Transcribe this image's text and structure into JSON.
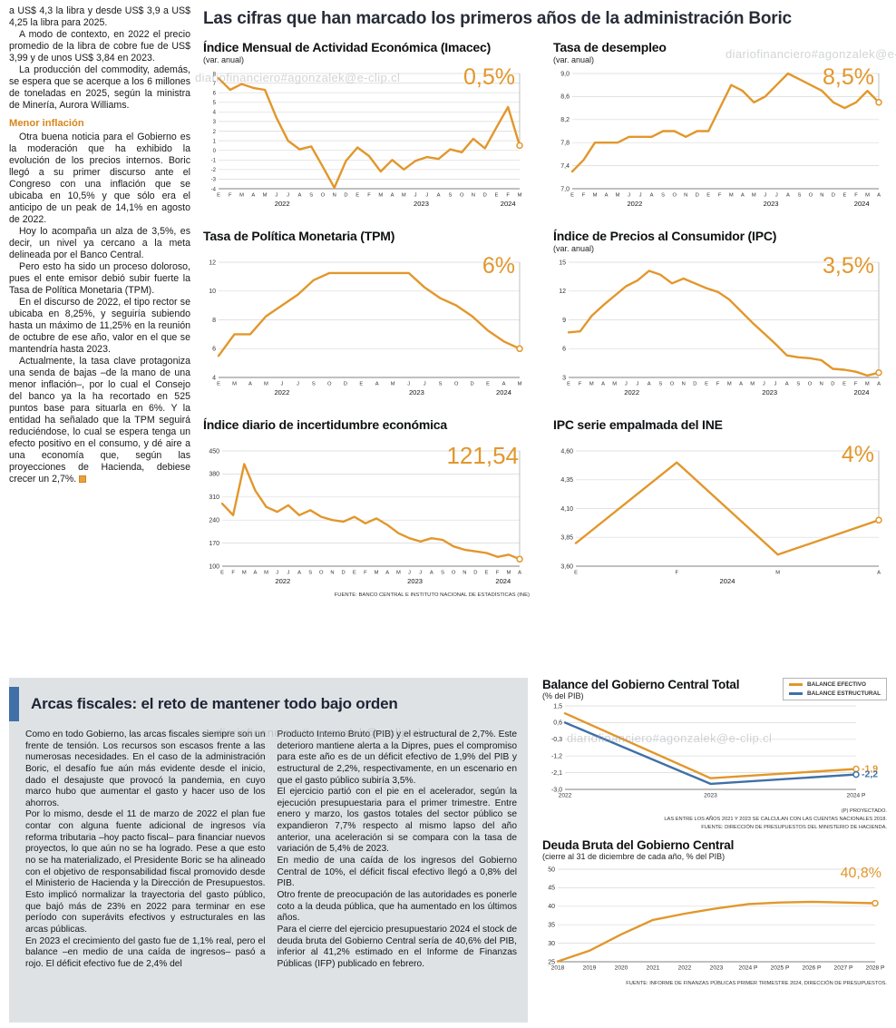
{
  "watermark": "diariofinanciero#agonzalek@e-clip.cl",
  "main_title": "Las cifras que han marcado los primeros años de la administración Boric",
  "colors": {
    "orange": "#e2972b",
    "blue": "#3f70a8",
    "gray_box": "#dfe2e5"
  },
  "left_column": {
    "paragraphs": [
      "a US$ 4,3 la libra y desde US$ 3,9 a US$ 4,25 la libra para 2025.",
      "A modo de contexto, en 2022 el precio promedio de la libra de cobre fue de US$ 3,99 y de unos US$ 3,84 en 2023.",
      "La producción del commodity, además, se espera que se acerque a los 6 millones de toneladas en 2025, según la ministra de Minería, Aurora Williams."
    ],
    "section_heading": "Menor inflación",
    "paragraphs2": [
      "Otra buena noticia para el Gobierno es la moderación que ha exhibido la evolución de los precios internos. Boric llegó a su primer discurso ante el Congreso con una inflación que se ubicaba en 10,5% y que sólo era el anticipo de un peak de 14,1% en agosto de 2022.",
      "Hoy lo acompaña un alza de 3,5%, es decir, un nivel ya cercano a la meta delineada por el Banco Central.",
      "Pero esto ha sido un proceso doloroso, pues el ente emisor debió subir fuerte la Tasa de Política Monetaria (TPM).",
      "En el discurso de 2022, el tipo rector se ubicaba en 8,25%, y seguiría subiendo hasta un máximo de 11,25% en la reunión de octubre de ese año, valor en el que se mantendría hasta 2023.",
      "Actualmente, la tasa clave protagoniza una senda de bajas –de la mano de una menor inflación–, por lo cual el Consejo del banco ya la ha recortado en 525 puntos base para situarla en 6%. Y la entidad ha señalado que la TPM seguirá reduciéndose, lo cual se espera tenga un efecto positivo en el consumo, y dé aire a una economía que, según las proyecciones de Hacienda, debiese crecer un 2,7%."
    ]
  },
  "chart_data": [
    {
      "type": "line",
      "title": "Índice Mensual de Actividad Económica (Imacec)",
      "subtitle": "(var. anual)",
      "big_value": "0,5%",
      "ylim": [
        -4,
        8
      ],
      "y_ticks": [
        {
          "v": 8,
          "l": "8"
        },
        {
          "v": 7,
          "l": "7"
        },
        {
          "v": 6,
          "l": "6"
        },
        {
          "v": 5,
          "l": "5"
        },
        {
          "v": 4,
          "l": "4"
        },
        {
          "v": 3,
          "l": "3"
        },
        {
          "v": 2,
          "l": "2"
        },
        {
          "v": 1,
          "l": "1"
        },
        {
          "v": 0,
          "l": "0"
        },
        {
          "v": -1,
          "l": "-1"
        },
        {
          "v": -2,
          "l": "-2"
        },
        {
          "v": -3,
          "l": "-3"
        },
        {
          "v": -4,
          "l": "-4"
        }
      ],
      "x_labels": [
        "E",
        "F",
        "M",
        "A",
        "M",
        "J",
        "J",
        "A",
        "S",
        "O",
        "N",
        "D",
        "E",
        "F",
        "M",
        "A",
        "M",
        "J",
        "J",
        "A",
        "S",
        "O",
        "N",
        "D",
        "E",
        "F",
        "M"
      ],
      "years": [
        "2022",
        "2023",
        "2024"
      ],
      "year_spans": [
        [
          0,
          11
        ],
        [
          12,
          23
        ],
        [
          24,
          26
        ]
      ],
      "series": [
        {
          "name": "Imacec var. anual",
          "color": "#e2972b",
          "values": [
            7.5,
            6.3,
            6.9,
            6.5,
            6.3,
            3.4,
            1.0,
            0.1,
            0.4,
            -1.7,
            -3.9,
            -1.1,
            0.3,
            -0.6,
            -2.2,
            -1.0,
            -2.0,
            -1.1,
            -0.7,
            -0.9,
            0.1,
            -0.2,
            1.2,
            0.2,
            2.4,
            4.5,
            0.5
          ]
        }
      ]
    },
    {
      "type": "line",
      "title": "Tasa de desempleo",
      "subtitle": "(var. anual)",
      "big_value": "8,5%",
      "ylim": [
        7.0,
        9.0
      ],
      "y_ticks": [
        {
          "v": 9.0,
          "l": "9,0"
        },
        {
          "v": 8.6,
          "l": "8,6"
        },
        {
          "v": 8.2,
          "l": "8,2"
        },
        {
          "v": 7.8,
          "l": "7,8"
        },
        {
          "v": 7.4,
          "l": "7,4"
        },
        {
          "v": 7.0,
          "l": "7,0"
        }
      ],
      "x_labels": [
        "E",
        "F",
        "M",
        "A",
        "M",
        "J",
        "J",
        "A",
        "S",
        "O",
        "N",
        "D",
        "E",
        "F",
        "M",
        "A",
        "M",
        "J",
        "J",
        "A",
        "S",
        "O",
        "N",
        "D",
        "E",
        "F",
        "M",
        "A"
      ],
      "years": [
        "2022",
        "2023",
        "2024"
      ],
      "year_spans": [
        [
          0,
          11
        ],
        [
          12,
          23
        ],
        [
          24,
          27
        ]
      ],
      "series": [
        {
          "name": "Tasa de desempleo",
          "color": "#e2972b",
          "values": [
            7.3,
            7.5,
            7.8,
            7.8,
            7.8,
            7.9,
            7.9,
            7.9,
            8.0,
            8.0,
            7.9,
            8.0,
            8.0,
            8.4,
            8.8,
            8.7,
            8.5,
            8.6,
            8.8,
            9.0,
            8.9,
            8.8,
            8.7,
            8.5,
            8.4,
            8.5,
            8.7,
            8.5
          ]
        }
      ]
    },
    {
      "type": "line",
      "title": "Tasa de Política Monetaria (TPM)",
      "subtitle": "",
      "big_value": "6%",
      "ylim": [
        4,
        12
      ],
      "y_ticks": [
        {
          "v": 12,
          "l": "12"
        },
        {
          "v": 10,
          "l": "10"
        },
        {
          "v": 8,
          "l": "8"
        },
        {
          "v": 6,
          "l": "6"
        },
        {
          "v": 4,
          "l": "4"
        }
      ],
      "x_labels": [
        "E",
        "M",
        "A",
        "M",
        "J",
        "J",
        "S",
        "O",
        "D",
        "E",
        "A",
        "M",
        "J",
        "J",
        "S",
        "O",
        "D",
        "E",
        "A",
        "M"
      ],
      "years": [
        "2022",
        "2023",
        "2024"
      ],
      "year_spans": [
        [
          0,
          8
        ],
        [
          9,
          16
        ],
        [
          17,
          19
        ]
      ],
      "series": [
        {
          "name": "TPM",
          "color": "#e2972b",
          "values": [
            5.5,
            7.0,
            7.0,
            8.25,
            9.0,
            9.75,
            10.75,
            11.25,
            11.25,
            11.25,
            11.25,
            11.25,
            11.25,
            10.25,
            9.5,
            9.0,
            8.25,
            7.25,
            6.5,
            6.0
          ]
        }
      ]
    },
    {
      "type": "line",
      "title": "Índice de Precios al Consumidor (IPC)",
      "subtitle": "(var. anual)",
      "big_value": "3,5%",
      "ylim": [
        3,
        15
      ],
      "y_ticks": [
        {
          "v": 15,
          "l": "15"
        },
        {
          "v": 12,
          "l": "12"
        },
        {
          "v": 9,
          "l": "9"
        },
        {
          "v": 6,
          "l": "6"
        },
        {
          "v": 3,
          "l": "3"
        }
      ],
      "x_labels": [
        "E",
        "F",
        "M",
        "A",
        "M",
        "J",
        "J",
        "A",
        "S",
        "O",
        "N",
        "D",
        "E",
        "F",
        "M",
        "A",
        "M",
        "J",
        "J",
        "A",
        "S",
        "O",
        "N",
        "D",
        "E",
        "F",
        "M",
        "A"
      ],
      "years": [
        "2022",
        "2023",
        "2024"
      ],
      "year_spans": [
        [
          0,
          11
        ],
        [
          12,
          23
        ],
        [
          24,
          27
        ]
      ],
      "series": [
        {
          "name": "IPC var. anual",
          "color": "#e2972b",
          "values": [
            7.7,
            7.8,
            9.4,
            10.5,
            11.5,
            12.5,
            13.1,
            14.1,
            13.7,
            12.8,
            13.3,
            12.8,
            12.3,
            11.9,
            11.1,
            9.9,
            8.7,
            7.6,
            6.5,
            5.3,
            5.1,
            5.0,
            4.8,
            3.9,
            3.8,
            3.6,
            3.2,
            3.5
          ]
        }
      ]
    },
    {
      "type": "line",
      "title": "Índice diario de incertidumbre económica",
      "subtitle": "",
      "big_value": "121,54",
      "source": "FUENTE: BANCO CENTRAL E INSTITUTO NACIONAL DE ESTADÍSTICAS (INE)",
      "ylim": [
        100,
        450
      ],
      "y_ticks": [
        {
          "v": 450,
          "l": "450"
        },
        {
          "v": 380,
          "l": "380"
        },
        {
          "v": 310,
          "l": "310"
        },
        {
          "v": 240,
          "l": "240"
        },
        {
          "v": 170,
          "l": "170"
        },
        {
          "v": 100,
          "l": "100"
        }
      ],
      "x_labels": [
        "E",
        "F",
        "M",
        "A",
        "M",
        "J",
        "J",
        "A",
        "S",
        "O",
        "N",
        "D",
        "E",
        "F",
        "M",
        "A",
        "M",
        "J",
        "J",
        "A",
        "S",
        "O",
        "N",
        "D",
        "E",
        "F",
        "M",
        "A"
      ],
      "years": [
        "2022",
        "2023",
        "2024"
      ],
      "year_spans": [
        [
          0,
          11
        ],
        [
          12,
          23
        ],
        [
          24,
          27
        ]
      ],
      "series": [
        {
          "name": "Incertidumbre económica",
          "color": "#e2972b",
          "values": [
            290,
            255,
            410,
            330,
            280,
            265,
            285,
            255,
            270,
            250,
            240,
            235,
            250,
            230,
            245,
            225,
            200,
            185,
            175,
            185,
            180,
            160,
            150,
            145,
            140,
            128,
            135,
            121.54
          ]
        }
      ]
    },
    {
      "type": "line",
      "title": "IPC serie empalmada del INE",
      "subtitle": "",
      "big_value": "4%",
      "ylim": [
        3.6,
        4.6
      ],
      "y_ticks": [
        {
          "v": 4.6,
          "l": "4,60"
        },
        {
          "v": 4.35,
          "l": "4,35"
        },
        {
          "v": 4.1,
          "l": "4,10"
        },
        {
          "v": 3.85,
          "l": "3,85"
        },
        {
          "v": 3.6,
          "l": "3,60"
        }
      ],
      "x_labels": [
        "E",
        "F",
        "M",
        "A"
      ],
      "years": [
        "2024"
      ],
      "year_spans": [
        [
          0,
          3
        ]
      ],
      "series": [
        {
          "name": "IPC serie empalmada",
          "color": "#e2972b",
          "values": [
            3.8,
            4.5,
            3.7,
            4.0
          ]
        }
      ]
    },
    {
      "type": "line",
      "title": "Balance del Gobierno Central Total",
      "subtitle": "(% del PIB)",
      "legend": [
        {
          "label": "BALANCE EFECTIVO",
          "color": "#e2972b"
        },
        {
          "label": "BALANCE ESTRUCTURAL",
          "color": "#3f70a8"
        }
      ],
      "ylim": [
        -3.0,
        1.5
      ],
      "y_ticks": [
        {
          "v": 1.5,
          "l": "1,5"
        },
        {
          "v": 0.6,
          "l": "0,6"
        },
        {
          "v": -0.3,
          "l": "-0,3"
        },
        {
          "v": -1.2,
          "l": "-1,2"
        },
        {
          "v": -2.1,
          "l": "-2,1"
        },
        {
          "v": -3.0,
          "l": "-3,0"
        }
      ],
      "x_labels": [
        "2022",
        "2023",
        "2024 P"
      ],
      "series": [
        {
          "name": "Balance efectivo",
          "color": "#e2972b",
          "values": [
            1.1,
            -2.4,
            -1.9
          ],
          "end_label": "-1,9"
        },
        {
          "name": "Balance estructural",
          "color": "#3f70a8",
          "values": [
            0.6,
            -2.7,
            -2.2
          ],
          "end_label": "-2,2"
        }
      ],
      "footnotes": [
        "(P) PROYECTADO.",
        "LAS ENTRE LOS AÑOS 2021 Y 2023 SE CALCULAN CON LAS CUENTAS NACIONALES 2018.",
        "FUENTE: DIRECCIÓN DE PRESUPUESTOS DEL MINISTERIO DE HACIENDA."
      ]
    },
    {
      "type": "line",
      "title": "Deuda Bruta del Gobierno Central",
      "subtitle": "(cierre al 31 de diciembre de cada año, % del PIB)",
      "big_value": "40,8%",
      "guide": false,
      "source": "FUENTE: INFORME DE FINANZAS PÚBLICAS PRIMER TRIMESTRE 2024, DIRECCIÓN DE PRESUPUESTOS.",
      "ylim": [
        25,
        50
      ],
      "y_ticks": [
        {
          "v": 50,
          "l": "50"
        },
        {
          "v": 45,
          "l": "45"
        },
        {
          "v": 40,
          "l": "40"
        },
        {
          "v": 35,
          "l": "35"
        },
        {
          "v": 30,
          "l": "30"
        },
        {
          "v": 25,
          "l": "25"
        }
      ],
      "x_labels": [
        "2018",
        "2019",
        "2020",
        "2021",
        "2022",
        "2023",
        "2024 P",
        "2025 P",
        "2026 P",
        "2027 P",
        "2028 P"
      ],
      "series": [
        {
          "name": "Deuda bruta",
          "color": "#e2972b",
          "values": [
            25.1,
            28.0,
            32.4,
            36.3,
            38.0,
            39.4,
            40.6,
            41.0,
            41.2,
            41.0,
            40.8
          ]
        }
      ]
    }
  ],
  "fiscal_section": {
    "title": "Arcas fiscales: el reto de mantener todo bajo orden",
    "col1": [
      "Como en todo Gobierno, las arcas fiscales siempre son un frente de tensión. Los recursos son escasos frente a las numerosas necesidades. En el caso de la administración Boric, el desafío fue aún más evidente desde el inicio, dado el desajuste que provocó la pandemia, en cuyo marco hubo que aumentar el gasto y hacer uso de los ahorros.",
      "Por lo mismo, desde el 11 de marzo de 2022 el plan fue contar con alguna fuente adicional de ingresos vía reforma tributaria –hoy pacto fiscal– para financiar nuevos proyectos, lo que aún no se ha logrado. Pese a que esto no se ha materializado, el Presidente Boric se ha alineado con el objetivo de responsabilidad fiscal promovido desde el Ministerio de Hacienda y la Dirección de Presupuestos. Esto implicó normalizar la trayectoria del gasto público, que bajó más de 23% en 2022 para terminar en ese período con superávits efectivos y estructurales en las arcas públicas.",
      "En 2023 el crecimiento del gasto fue de 1,1% real, pero el balance –en medio de una caída de ingresos– pasó a rojo. El déficit efectivo fue de 2,4% del"
    ],
    "col2": [
      "Producto Interno Bruto (PIB) y el estructural de 2,7%. Este deterioro mantiene alerta a la Dipres, pues el compromiso para este año es de un déficit efectivo de 1,9% del PIB y estructural de 2,2%, respectivamente, en un escenario en que el gasto público subiría 3,5%.",
      "El ejercicio partió con el pie en el acelerador, según la ejecución presupuestaria para el primer trimestre. Entre enero y marzo, los gastos totales del sector público se expandieron 7,7% respecto al mismo lapso del año anterior, una aceleración si se compara con la tasa de variación de 5,4% de 2023.",
      "En medio de una caída de los ingresos del Gobierno Central de 10%, el déficit fiscal efectivo llegó a 0,8% del PIB.",
      "Otro frente de preocupación de las autoridades es ponerle coto a la deuda pública, que ha aumentado en los últimos años.",
      "Para el cierre del ejercicio presupuestario 2024 el stock de deuda bruta del Gobierno Central sería de 40,6% del PIB, inferior al 41,2% estimado en el Informe de Finanzas Públicas (IFP) publicado en febrero."
    ]
  }
}
